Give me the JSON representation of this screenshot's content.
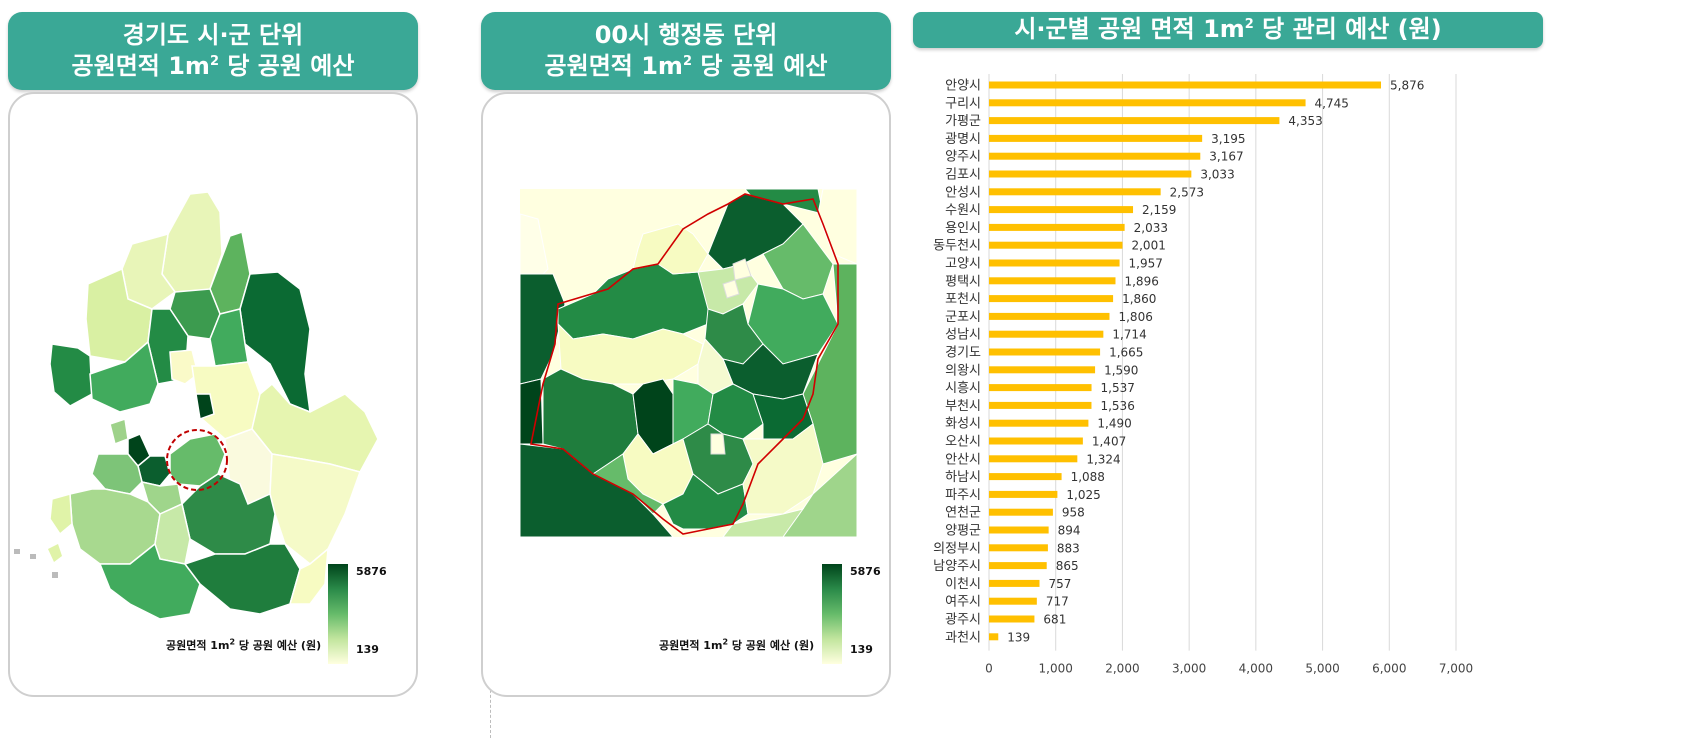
{
  "panel_left": {
    "title_line1": "경기도 시·군 단위",
    "title_line2_prefix": "공원면적 1m",
    "title_line2_sup": "2",
    "title_line2_suffix": " 당 공원 예산",
    "legend_max": "5876",
    "legend_min": "139",
    "legend_title_prefix": "공원면적 1m",
    "legend_title_sup": "2",
    "legend_title_suffix": " 당 공원 예산 (원)"
  },
  "panel_middle": {
    "title_line1": "00시 행정동 단위",
    "title_line2_prefix": "공원면적 1m",
    "title_line2_sup": "2",
    "title_line2_suffix": " 당 공원 예산",
    "legend_max": "5876",
    "legend_min": "139",
    "legend_title_prefix": "공원면적 1m",
    "legend_title_sup": "2",
    "legend_title_suffix": " 당 공원 예산 (원)"
  },
  "panel_right": {
    "title_prefix": "시·군별 공원  면적 1m",
    "title_sup": "2",
    "title_suffix": " 당 관리 예산 (원)"
  },
  "colors": {
    "header": "#3aa896",
    "bar": "#ffc000",
    "map_dark": "#00441b",
    "map_light": "#ffffe0",
    "highlight_outline": "#c00000"
  },
  "chart_data": {
    "type": "bar",
    "orientation": "horizontal",
    "categories": [
      "안양시",
      "구리시",
      "가평군",
      "광명시",
      "양주시",
      "김포시",
      "안성시",
      "수원시",
      "용인시",
      "동두천시",
      "고양시",
      "평택시",
      "포천시",
      "군포시",
      "성남시",
      "경기도",
      "의왕시",
      "시흥시",
      "부천시",
      "화성시",
      "오산시",
      "안산시",
      "하남시",
      "파주시",
      "연천군",
      "양평군",
      "의정부시",
      "남양주시",
      "이천시",
      "여주시",
      "광주시",
      "과천시"
    ],
    "values": [
      5876,
      4745,
      4353,
      3195,
      3167,
      3033,
      2573,
      2159,
      2033,
      2001,
      1957,
      1896,
      1860,
      1806,
      1714,
      1665,
      1590,
      1537,
      1536,
      1490,
      1407,
      1324,
      1088,
      1025,
      958,
      894,
      883,
      865,
      757,
      717,
      681,
      139
    ],
    "value_labels": [
      "5,876",
      "4,745",
      "4,353",
      "3,195",
      "3,167",
      "3,033",
      "2,573",
      "2,159",
      "2,033",
      "2,001",
      "1,957",
      "1,896",
      "1,860",
      "1,806",
      "1,714",
      "1,665",
      "1,590",
      "1,537",
      "1,536",
      "1,490",
      "1,407",
      "1,324",
      "1,088",
      "1,025",
      "958",
      "894",
      "883",
      "865",
      "757",
      "717",
      "681",
      "139"
    ],
    "xlim": [
      0,
      7000
    ],
    "xticks": [
      0,
      1000,
      2000,
      3000,
      4000,
      5000,
      6000,
      7000
    ],
    "xtick_labels": [
      "0",
      "1,000",
      "2,000",
      "3,000",
      "4,000",
      "5,000",
      "6,000",
      "7,000"
    ],
    "grid": true
  }
}
